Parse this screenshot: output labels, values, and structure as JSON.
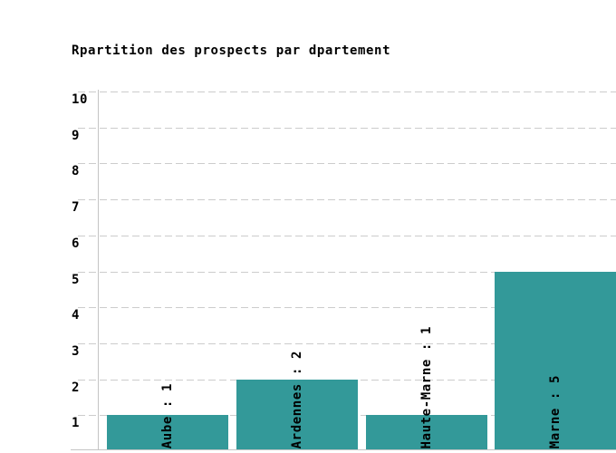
{
  "title": "Rpartition des prospects par dpartement",
  "chart_data": {
    "type": "bar",
    "title": "Rpartition des prospects par dpartement",
    "categories": [
      "Aube",
      "Ardennes",
      "Haute-Marne",
      "Marne"
    ],
    "values": [
      1,
      2,
      1,
      5
    ],
    "bar_labels": [
      "Aube : 1",
      "Ardennes : 2",
      "Haute-Marne : 1",
      "Marne : 5"
    ],
    "y_ticks": [
      1,
      2,
      3,
      4,
      5,
      6,
      7,
      8,
      9,
      10
    ],
    "ylim": [
      0,
      10
    ],
    "xlabel": "",
    "ylabel": "",
    "legend": "none",
    "grid": "horizontal-dashed",
    "bar_label_orientation": "vertical-bottom-to-top",
    "bar_color": "#339999",
    "grid_color": "#cccccc",
    "axis_color": "#c4c4c4",
    "text_color": "#000000",
    "background_color": "#ffffff"
  }
}
